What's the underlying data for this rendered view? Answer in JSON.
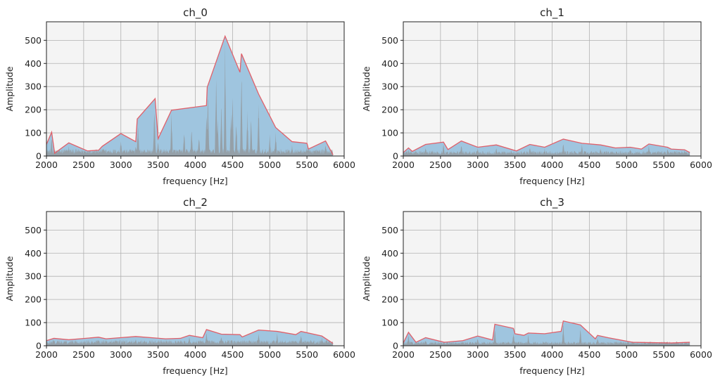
{
  "colors": {
    "axes_background": "#f4f4f4",
    "envelope_fill": "#9fc5df",
    "envelope_line": "#e0606a",
    "spectrum": "#95a0a8",
    "grid": "#b0b0b0"
  },
  "chart_data": [
    {
      "type": "area",
      "title": "ch_0",
      "xlabel": "frequency [Hz]",
      "ylabel": "Amplitude",
      "xlim": [
        2000,
        6000
      ],
      "ylim": [
        0,
        580
      ],
      "xticks": [
        2000,
        2500,
        3000,
        3500,
        4000,
        4500,
        5000,
        5500,
        6000
      ],
      "yticks": [
        0,
        100,
        200,
        300,
        400,
        500
      ],
      "grid": true,
      "spectrum_base": 25,
      "envelope": [
        [
          2000,
          50
        ],
        [
          2070,
          103
        ],
        [
          2110,
          12
        ],
        [
          2300,
          57
        ],
        [
          2550,
          22
        ],
        [
          2700,
          25
        ],
        [
          2750,
          42
        ],
        [
          3000,
          97
        ],
        [
          3200,
          62
        ],
        [
          3220,
          160
        ],
        [
          3460,
          248
        ],
        [
          3500,
          75
        ],
        [
          3680,
          198
        ],
        [
          4150,
          218
        ],
        [
          4160,
          297
        ],
        [
          4400,
          518
        ],
        [
          4600,
          362
        ],
        [
          4620,
          442
        ],
        [
          4850,
          268
        ],
        [
          5080,
          123
        ],
        [
          5300,
          62
        ],
        [
          5500,
          55
        ],
        [
          5520,
          30
        ],
        [
          5750,
          65
        ],
        [
          5850,
          5
        ]
      ],
      "peaks": [
        [
          2070,
          90
        ],
        [
          2100,
          30
        ],
        [
          2300,
          45
        ],
        [
          2550,
          20
        ],
        [
          2760,
          35
        ],
        [
          3000,
          80
        ],
        [
          3200,
          55
        ],
        [
          3230,
          150
        ],
        [
          3450,
          240
        ],
        [
          3500,
          70
        ],
        [
          3680,
          190
        ],
        [
          3850,
          120
        ],
        [
          3950,
          130
        ],
        [
          4050,
          100
        ],
        [
          4150,
          210
        ],
        [
          4170,
          290
        ],
        [
          4280,
          400
        ],
        [
          4300,
          180
        ],
        [
          4350,
          250
        ],
        [
          4400,
          510
        ],
        [
          4480,
          200
        ],
        [
          4500,
          280
        ],
        [
          4550,
          190
        ],
        [
          4620,
          430
        ],
        [
          4700,
          200
        ],
        [
          4750,
          190
        ],
        [
          4850,
          260
        ],
        [
          5000,
          100
        ],
        [
          5080,
          110
        ],
        [
          5300,
          50
        ],
        [
          5500,
          45
        ],
        [
          5750,
          55
        ]
      ]
    },
    {
      "type": "area",
      "title": "ch_1",
      "xlabel": "frequency [Hz]",
      "ylabel": "Amplitude",
      "xlim": [
        2000,
        6000
      ],
      "ylim": [
        0,
        580
      ],
      "xticks": [
        2000,
        2500,
        3000,
        3500,
        4000,
        4500,
        5000,
        5500,
        6000
      ],
      "yticks": [
        0,
        100,
        200,
        300,
        400,
        500
      ],
      "grid": true,
      "spectrum_base": 18,
      "envelope": [
        [
          2000,
          15
        ],
        [
          2070,
          35
        ],
        [
          2120,
          20
        ],
        [
          2300,
          50
        ],
        [
          2540,
          60
        ],
        [
          2600,
          28
        ],
        [
          2780,
          65
        ],
        [
          3000,
          38
        ],
        [
          3250,
          48
        ],
        [
          3520,
          22
        ],
        [
          3700,
          50
        ],
        [
          3900,
          38
        ],
        [
          4150,
          73
        ],
        [
          4400,
          55
        ],
        [
          4650,
          48
        ],
        [
          4850,
          35
        ],
        [
          5050,
          38
        ],
        [
          5200,
          30
        ],
        [
          5300,
          52
        ],
        [
          5550,
          38
        ],
        [
          5600,
          30
        ],
        [
          5780,
          27
        ],
        [
          5850,
          15
        ]
      ],
      "peaks": [
        [
          2070,
          30
        ],
        [
          2300,
          45
        ],
        [
          2540,
          55
        ],
        [
          2780,
          60
        ],
        [
          3000,
          35
        ],
        [
          3250,
          42
        ],
        [
          3700,
          45
        ],
        [
          3900,
          35
        ],
        [
          4150,
          68
        ],
        [
          4400,
          50
        ],
        [
          4650,
          42
        ],
        [
          5050,
          34
        ],
        [
          5300,
          48
        ],
        [
          5550,
          35
        ],
        [
          5780,
          25
        ]
      ]
    },
    {
      "type": "area",
      "title": "ch_2",
      "xlabel": "frequency [Hz]",
      "ylabel": "Amplitude",
      "xlim": [
        2000,
        6000
      ],
      "ylim": [
        0,
        580
      ],
      "xticks": [
        2000,
        2500,
        3000,
        3500,
        4000,
        4500,
        5000,
        5500,
        6000
      ],
      "yticks": [
        0,
        100,
        200,
        300,
        400,
        500
      ],
      "grid": true,
      "spectrum_base": 20,
      "envelope": [
        [
          2000,
          22
        ],
        [
          2100,
          32
        ],
        [
          2300,
          26
        ],
        [
          2700,
          37
        ],
        [
          2800,
          30
        ],
        [
          3200,
          40
        ],
        [
          3600,
          30
        ],
        [
          3800,
          32
        ],
        [
          3920,
          45
        ],
        [
          4100,
          35
        ],
        [
          4150,
          70
        ],
        [
          4350,
          50
        ],
        [
          4600,
          48
        ],
        [
          4630,
          38
        ],
        [
          4850,
          68
        ],
        [
          5100,
          62
        ],
        [
          5350,
          48
        ],
        [
          5420,
          62
        ],
        [
          5700,
          42
        ],
        [
          5850,
          10
        ]
      ],
      "peaks": [
        [
          2100,
          28
        ],
        [
          2700,
          33
        ],
        [
          3200,
          36
        ],
        [
          3920,
          42
        ],
        [
          4150,
          65
        ],
        [
          4350,
          45
        ],
        [
          4850,
          62
        ],
        [
          5100,
          55
        ],
        [
          5420,
          58
        ],
        [
          5700,
          38
        ],
        [
          5850,
          30
        ]
      ]
    },
    {
      "type": "area",
      "title": "ch_3",
      "xlabel": "frequency [Hz]",
      "ylabel": "Amplitude",
      "xlim": [
        2000,
        6000
      ],
      "ylim": [
        0,
        580
      ],
      "xticks": [
        2000,
        2500,
        3000,
        3500,
        4000,
        4500,
        5000,
        5500,
        6000
      ],
      "yticks": [
        0,
        100,
        200,
        300,
        400,
        500
      ],
      "grid": true,
      "spectrum_base": 15,
      "envelope": [
        [
          2000,
          12
        ],
        [
          2070,
          58
        ],
        [
          2170,
          15
        ],
        [
          2300,
          35
        ],
        [
          2550,
          15
        ],
        [
          2800,
          22
        ],
        [
          3000,
          42
        ],
        [
          3200,
          25
        ],
        [
          3230,
          93
        ],
        [
          3480,
          75
        ],
        [
          3500,
          52
        ],
        [
          3620,
          45
        ],
        [
          3680,
          55
        ],
        [
          3900,
          52
        ],
        [
          4120,
          62
        ],
        [
          4150,
          107
        ],
        [
          4380,
          90
        ],
        [
          4580,
          30
        ],
        [
          4610,
          45
        ],
        [
          4750,
          35
        ],
        [
          5080,
          15
        ],
        [
          5600,
          12
        ],
        [
          5850,
          15
        ]
      ],
      "peaks": [
        [
          2070,
          52
        ],
        [
          2300,
          30
        ],
        [
          3000,
          38
        ],
        [
          3230,
          88
        ],
        [
          3480,
          70
        ],
        [
          3680,
          50
        ],
        [
          4150,
          100
        ],
        [
          4380,
          85
        ],
        [
          4610,
          40
        ],
        [
          5080,
          12
        ]
      ]
    }
  ]
}
